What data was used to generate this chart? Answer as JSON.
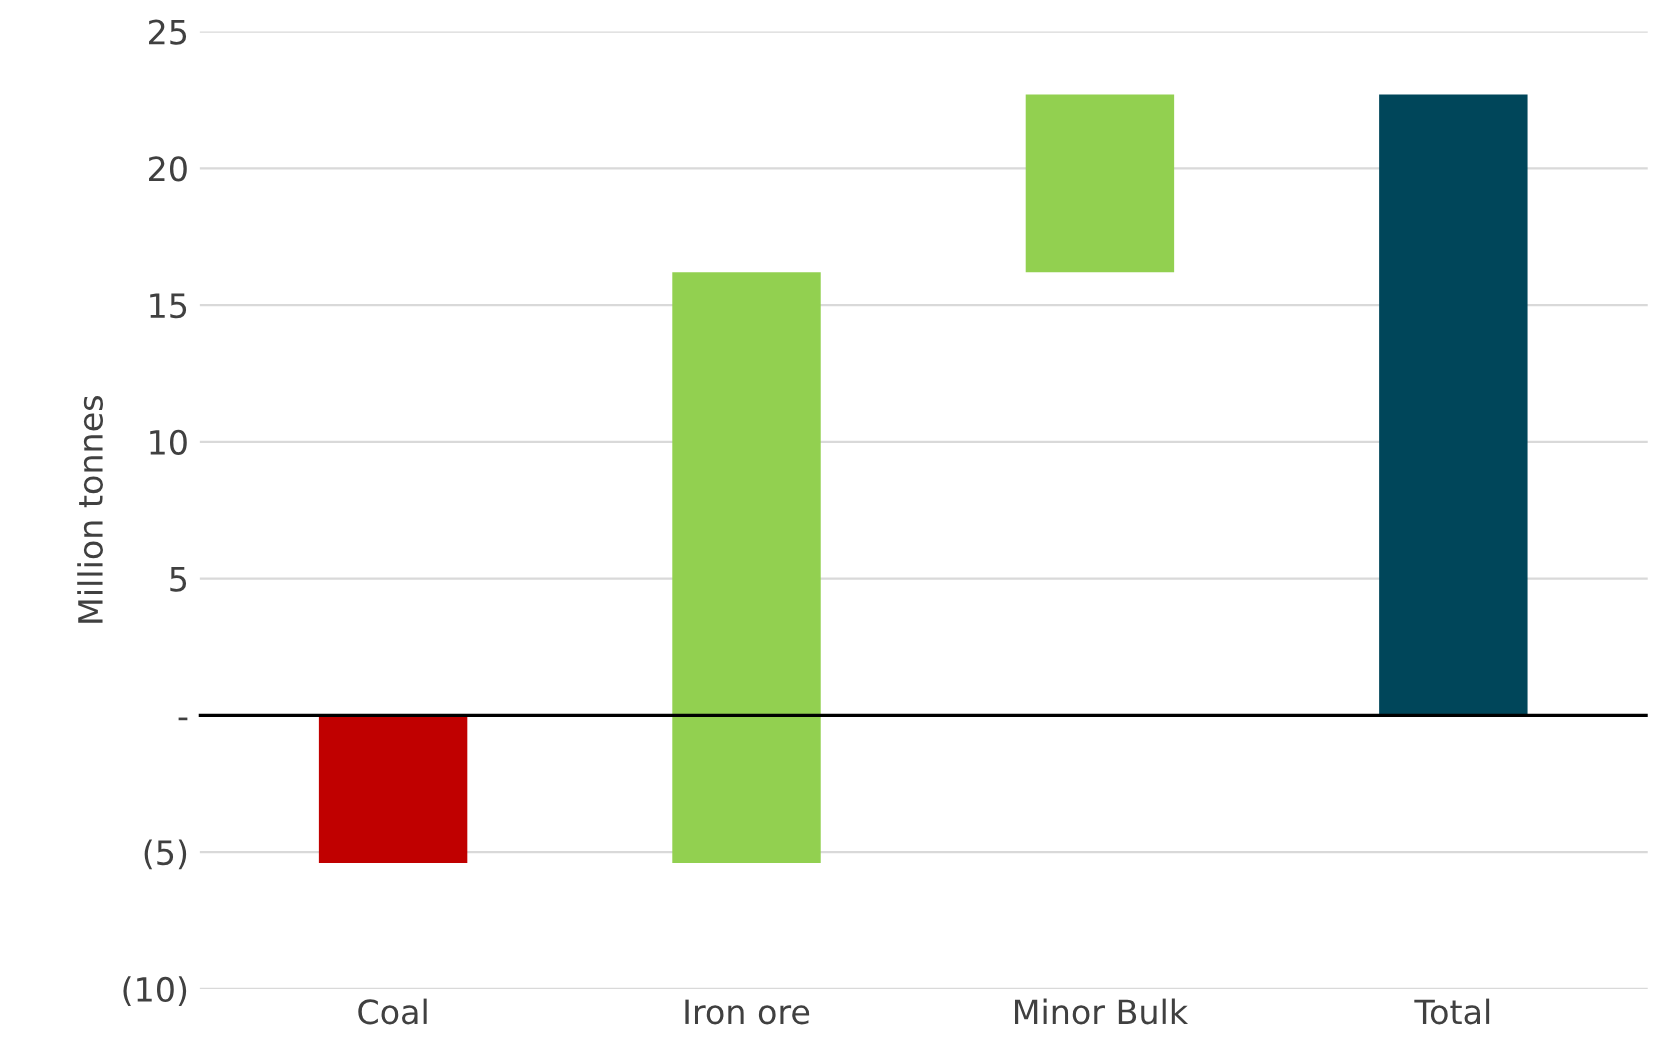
{
  "chart_data": {
    "type": "bar",
    "ylabel": "Million tonnes",
    "categories": [
      "Coal",
      "Iron ore",
      "Minor Bulk",
      "Total"
    ],
    "values": [
      -5.4,
      21.6,
      6.5,
      22.7
    ],
    "base": [
      0,
      -5.4,
      16.2,
      0
    ],
    "colors": [
      "#c00000",
      "#92d050",
      "#92d050",
      "#00465a"
    ],
    "ylim": [
      -10,
      25
    ],
    "yticks": [
      {
        "value": -10,
        "label": "(10)"
      },
      {
        "value": -5,
        "label": "(5)"
      },
      {
        "value": 0,
        "label": "-"
      },
      5,
      10,
      15,
      20,
      25
    ],
    "grid": "y"
  }
}
